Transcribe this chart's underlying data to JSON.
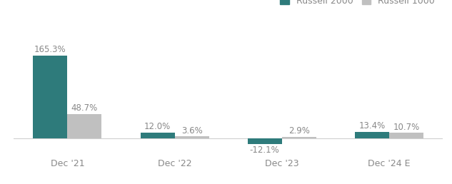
{
  "categories": [
    "Dec '21",
    "Dec '22",
    "Dec '23",
    "Dec '24 E"
  ],
  "russell_2000": [
    165.3,
    12.0,
    -12.1,
    13.4
  ],
  "russell_1000": [
    48.7,
    3.6,
    2.9,
    10.7
  ],
  "russell_2000_color": "#2e7b7b",
  "russell_1000_color": "#c0c0c0",
  "bar_width": 0.32,
  "ylim": [
    -25,
    210
  ],
  "legend_labels": [
    "Russell 2000",
    "Russell 1000"
  ],
  "background_color": "#ffffff",
  "label_fontsize": 8.5,
  "tick_fontsize": 9,
  "legend_fontsize": 9,
  "label_color": "#888888",
  "tick_color": "#888888"
}
